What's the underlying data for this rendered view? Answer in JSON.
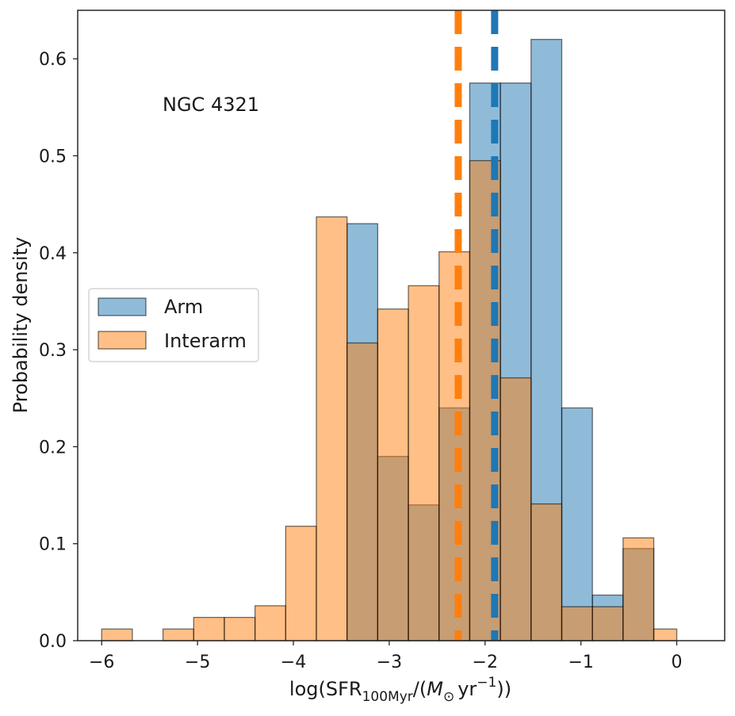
{
  "chart_data": {
    "type": "histogram",
    "annotation": "NGC 4321",
    "xlabel": {
      "prefix": "log(SFR",
      "sub": "100Myr",
      "mid": "/(",
      "m": "M",
      "msub": "⊙",
      "yr": "yr",
      "exp": "−1",
      "suffix": "))"
    },
    "ylabel": "Probability density",
    "xlim": [
      -6.25,
      0.5
    ],
    "ylim": [
      0.0,
      0.65
    ],
    "xticks": [
      -6,
      -5,
      -4,
      -3,
      -2,
      -1,
      0
    ],
    "xtick_labels": [
      "−6",
      "−5",
      "−4",
      "−3",
      "−2",
      "−1",
      "0"
    ],
    "yticks": [
      0.0,
      0.1,
      0.2,
      0.3,
      0.4,
      0.5,
      0.6
    ],
    "ytick_labels": [
      "0.0",
      "0.1",
      "0.2",
      "0.3",
      "0.4",
      "0.5",
      "0.6"
    ],
    "bin_edges": [
      -6.0,
      -5.68,
      -5.36,
      -5.04,
      -4.72,
      -4.4,
      -4.08,
      -3.76,
      -3.44,
      -3.12,
      -2.8,
      -2.48,
      -2.16,
      -1.84,
      -1.52,
      -1.2,
      -0.88,
      -0.56,
      -0.24,
      0.0
    ],
    "series": [
      {
        "name": "Arm",
        "color": "#1f77b4",
        "alpha": 0.5,
        "values": [
          0,
          0,
          0,
          0,
          0,
          0,
          0,
          0,
          0.43,
          0.19,
          0.14,
          0.24,
          0.575,
          0.575,
          0.62,
          0.24,
          0.047,
          0.095,
          0
        ],
        "median": -1.9
      },
      {
        "name": "Interarm",
        "color": "#ff7f0e",
        "alpha": 0.5,
        "values": [
          0.012,
          0,
          0.012,
          0.024,
          0.024,
          0.036,
          0.118,
          0.437,
          0.307,
          0.342,
          0.366,
          0.401,
          0.495,
          0.271,
          0.141,
          0.035,
          0.035,
          0.106,
          0.012
        ],
        "median": -2.28
      }
    ],
    "legend": {
      "position": "center-left",
      "entries": [
        "Arm",
        "Interarm"
      ]
    }
  }
}
